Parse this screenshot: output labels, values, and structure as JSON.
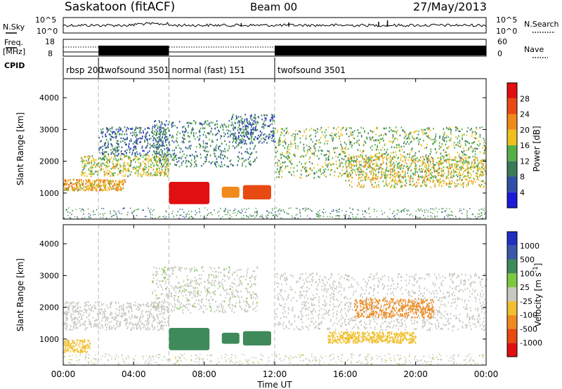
{
  "header": {
    "station": "Saskatoon (fitACF)",
    "beam": "Beam 00",
    "date": "27/May/2013"
  },
  "status_panels": {
    "nsky_label": "N.Sky",
    "freq_label_line1": "Freq.",
    "freq_label_line2": "[MHz]",
    "cpid_label": "CPID",
    "nsearch_label": "N.Search",
    "nave_label": "Nave",
    "noise_left_ticks": [
      "10^5",
      "10^0"
    ],
    "noise_right_ticks": [
      "10^5",
      "10^0"
    ],
    "freq_left_ticks": [
      "18",
      "8"
    ],
    "nave_right_ticks": [
      "60",
      "0"
    ]
  },
  "cpid_segments": [
    {
      "label": "rbsp 200",
      "start_hour": 0,
      "end_hour": 2
    },
    {
      "label": "twofsound 3501",
      "start_hour": 2,
      "end_hour": 6
    },
    {
      "label": "normal (fast) 151",
      "start_hour": 6,
      "end_hour": 12
    },
    {
      "label": "twofsound 3501",
      "start_hour": 12,
      "end_hour": 24
    }
  ],
  "axes": {
    "xlabel": "Time UT",
    "x_ticks": [
      "00:00",
      "04:00",
      "08:00",
      "12:00",
      "16:00",
      "20:00",
      "00:00"
    ],
    "x_range_hours": [
      0,
      24
    ],
    "ylabel": "Slant Range [km]",
    "y_ticks": [
      "1000",
      "2000",
      "3000",
      "4000"
    ],
    "y_range_km": [
      180,
      4600
    ]
  },
  "colorbars": {
    "power": {
      "label": "Power [dB]",
      "ticks": [
        "4",
        "8",
        "12",
        "16",
        "20",
        "24",
        "28"
      ],
      "colors": [
        "#1b1bd6",
        "#2f4fa8",
        "#3c7a58",
        "#56b04a",
        "#f0c020",
        "#f08a1a",
        "#e84a14",
        "#e01010"
      ]
    },
    "velocity": {
      "label": "Velocity [m s^-1]",
      "ticks": [
        "1000",
        "500",
        "100",
        "25",
        "-25",
        "-100",
        "-500",
        "-1000"
      ],
      "colors": [
        "#2030c0",
        "#3a58a8",
        "#3e8a5a",
        "#7ec840",
        "#c8c8c0",
        "#f0c030",
        "#f08a20",
        "#e84a10",
        "#e01010"
      ]
    }
  },
  "chart_data": {
    "type": "heatmap",
    "title": "Saskatoon (fitACF)",
    "xlabel": "Time UT",
    "ylabel": "Slant Range [km]",
    "xlim_hours": [
      0,
      24
    ],
    "ylim_km": [
      180,
      4600
    ],
    "panels": [
      {
        "name": "Power",
        "unit": "dB",
        "scatter_bands": [
          {
            "t0": 0.0,
            "t1": 3.5,
            "r0": 1100,
            "r1": 1450,
            "value": 20
          },
          {
            "t0": 1.0,
            "t1": 6.0,
            "r0": 1550,
            "r1": 2200,
            "value": 16
          },
          {
            "t0": 2.0,
            "t1": 6.0,
            "r0": 2200,
            "r1": 3100,
            "value": 8
          },
          {
            "t0": 5.0,
            "t1": 11.0,
            "r0": 1850,
            "r1": 3300,
            "value": 10
          },
          {
            "t0": 9.5,
            "t1": 12.0,
            "r0": 2600,
            "r1": 3500,
            "value": 8
          },
          {
            "t0": 12.0,
            "t1": 24.0,
            "r0": 1500,
            "r1": 3100,
            "value": 14
          },
          {
            "t0": 16.0,
            "t1": 24.0,
            "r0": 1200,
            "r1": 2200,
            "value": 18
          }
        ],
        "dense_patches": [
          {
            "t0": 6.0,
            "t1": 8.3,
            "r0": 650,
            "r1": 1350,
            "value": 30
          },
          {
            "t0": 9.0,
            "t1": 10.0,
            "r0": 850,
            "r1": 1200,
            "value": 22
          },
          {
            "t0": 10.2,
            "t1": 11.8,
            "r0": 800,
            "r1": 1250,
            "value": 24
          }
        ]
      },
      {
        "name": "Velocity",
        "unit": "m s^-1",
        "scatter_bands": [
          {
            "t0": 0.0,
            "t1": 6.0,
            "r0": 1300,
            "r1": 2200,
            "value": 0
          },
          {
            "t0": 5.0,
            "t1": 11.0,
            "r0": 1850,
            "r1": 3300,
            "value": 10
          },
          {
            "t0": 12.0,
            "t1": 24.0,
            "r0": 1300,
            "r1": 3100,
            "value": 0
          },
          {
            "t0": 16.5,
            "t1": 21.0,
            "r0": 1700,
            "r1": 2300,
            "value": -300
          },
          {
            "t0": 15.0,
            "t1": 20.0,
            "r0": 900,
            "r1": 1250,
            "value": -80
          },
          {
            "t0": 0.0,
            "t1": 1.5,
            "r0": 600,
            "r1": 1000,
            "value": -80
          }
        ],
        "dense_patches": [
          {
            "t0": 6.0,
            "t1": 8.3,
            "r0": 650,
            "r1": 1350,
            "value": 300
          },
          {
            "t0": 9.0,
            "t1": 10.0,
            "r0": 850,
            "r1": 1200,
            "value": 300
          },
          {
            "t0": 10.2,
            "t1": 11.8,
            "r0": 800,
            "r1": 1250,
            "value": 300
          }
        ]
      }
    ],
    "series_top": [
      {
        "name": "N.Sky",
        "values": "noise ~10^3, approximately constant 00:00-24:00"
      },
      {
        "name": "Freq.",
        "values": "~10 MHz 00:00-02:00 and 06:00-12:00; alternating 8/18 MHz 02:00-06:00 and 12:00-24:00"
      }
    ]
  }
}
